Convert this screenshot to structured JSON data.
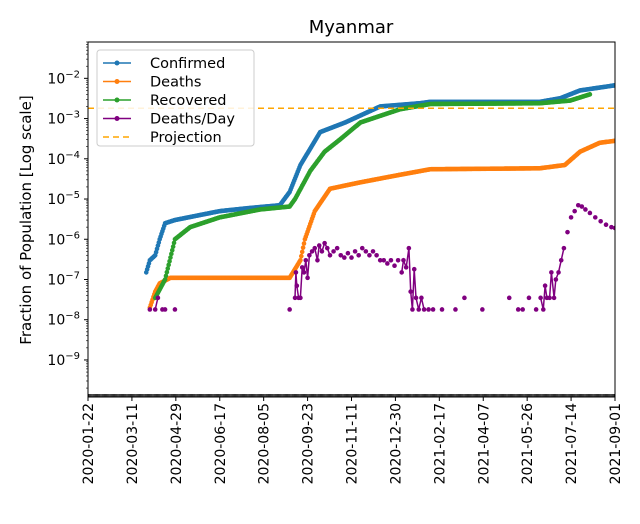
{
  "chart_data": {
    "type": "line",
    "title": "Myanmar",
    "xlabel": "",
    "ylabel": "Fraction of Population [Log scale]",
    "yscale": "log",
    "ylim": [
      1.2e-10,
      0.08
    ],
    "x_origin": "2020-01-22",
    "x_unit": "days since 2020-01-22",
    "xlim": [
      0,
      588
    ],
    "x_ticks": [
      {
        "day": 0,
        "label": "2020-01-22"
      },
      {
        "day": 49,
        "label": "2020-03-11"
      },
      {
        "day": 98,
        "label": "2020-04-29"
      },
      {
        "day": 147,
        "label": "2020-06-17"
      },
      {
        "day": 196,
        "label": "2020-08-05"
      },
      {
        "day": 245,
        "label": "2020-09-23"
      },
      {
        "day": 294,
        "label": "2020-11-11"
      },
      {
        "day": 343,
        "label": "2020-12-30"
      },
      {
        "day": 392,
        "label": "2021-02-17"
      },
      {
        "day": 441,
        "label": "2021-04-07"
      },
      {
        "day": 490,
        "label": "2021-05-26"
      },
      {
        "day": 539,
        "label": "2021-07-14"
      },
      {
        "day": 588,
        "label": "2021-09-01"
      }
    ],
    "y_ticks": [
      {
        "exp": -2,
        "base": "10",
        "sup": "−2"
      },
      {
        "exp": -3,
        "base": "10",
        "sup": "−3"
      },
      {
        "exp": -4,
        "base": "10",
        "sup": "−4"
      },
      {
        "exp": -5,
        "base": "10",
        "sup": "−5"
      },
      {
        "exp": -6,
        "base": "10",
        "sup": "−6"
      },
      {
        "exp": -7,
        "base": "10",
        "sup": "−7"
      },
      {
        "exp": -8,
        "base": "10",
        "sup": "−8"
      },
      {
        "exp": -9,
        "base": "10",
        "sup": "−9"
      }
    ],
    "legend_position": "top-left",
    "series": [
      {
        "name": "Confirmed",
        "color": "#1f77b4",
        "style": "line-dots",
        "points": [
          [
            65,
            1.5e-07
          ],
          [
            69,
            3e-07
          ],
          [
            75,
            4e-07
          ],
          [
            80,
            1e-06
          ],
          [
            86,
            2.5e-06
          ],
          [
            97,
            3e-06
          ],
          [
            125,
            4e-06
          ],
          [
            147,
            5e-06
          ],
          [
            181,
            6e-06
          ],
          [
            214,
            7e-06
          ],
          [
            225,
            1.5e-05
          ],
          [
            237,
            7e-05
          ],
          [
            259,
            0.00046
          ],
          [
            287,
            0.0008
          ],
          [
            326,
            0.002
          ],
          [
            370,
            0.0024
          ],
          [
            382,
            0.0026
          ],
          [
            504,
            0.0026
          ],
          [
            527,
            0.0032
          ],
          [
            549,
            0.005
          ],
          [
            588,
            0.0067
          ]
        ]
      },
      {
        "name": "Deaths",
        "color": "#ff7f0e",
        "style": "line-dots",
        "points": [
          [
            69,
            2e-08
          ],
          [
            75,
            5e-08
          ],
          [
            80,
            8e-08
          ],
          [
            92,
            1.1e-07
          ],
          [
            225,
            1.1e-07
          ],
          [
            237,
            3e-07
          ],
          [
            242,
            1e-06
          ],
          [
            253,
            5e-06
          ],
          [
            270,
            1.8e-05
          ],
          [
            304,
            2.6e-05
          ],
          [
            348,
            4e-05
          ],
          [
            382,
            5.5e-05
          ],
          [
            504,
            5.8e-05
          ],
          [
            532,
            7e-05
          ],
          [
            549,
            0.00015
          ],
          [
            571,
            0.00025
          ],
          [
            588,
            0.00028
          ]
        ]
      },
      {
        "name": "Recovered",
        "color": "#2ca02c",
        "style": "line-dots",
        "points": [
          [
            75,
            3.5e-08
          ],
          [
            86,
            1e-07
          ],
          [
            97,
            1e-06
          ],
          [
            114,
            2e-06
          ],
          [
            147,
            3.5e-06
          ],
          [
            192,
            5.5e-06
          ],
          [
            225,
            6.5e-06
          ],
          [
            231,
            1e-05
          ],
          [
            248,
            5e-05
          ],
          [
            264,
            0.00015
          ],
          [
            281,
            0.0003
          ],
          [
            304,
            0.0008
          ],
          [
            348,
            0.0017
          ],
          [
            382,
            0.0023
          ],
          [
            504,
            0.0024
          ],
          [
            538,
            0.0028
          ],
          [
            560,
            0.004
          ]
        ]
      },
      {
        "name": "Deaths/Day",
        "color": "#800080",
        "style": "scatter-connected",
        "points": [
          [
            69,
            1.8e-08
          ],
          [
            75,
            1.8e-08
          ],
          [
            78,
            3.5e-08
          ],
          [
            83,
            1.8e-08
          ],
          [
            86,
            1.8e-08
          ],
          [
            97,
            1.8e-08
          ],
          [
            225,
            1.8e-08
          ],
          [
            231,
            3.5e-08
          ],
          [
            232,
            1.5e-07
          ],
          [
            233,
            7e-08
          ],
          [
            235,
            3.5e-08
          ],
          [
            237,
            3.5e-08
          ],
          [
            239,
            2e-07
          ],
          [
            241,
            1.5e-07
          ],
          [
            243,
            3e-07
          ],
          [
            245,
            1.1e-07
          ],
          [
            247,
            4e-07
          ],
          [
            250,
            5e-07
          ],
          [
            253,
            6e-07
          ],
          [
            256,
            3e-07
          ],
          [
            258,
            7e-07
          ],
          [
            261,
            5e-07
          ],
          [
            264,
            8e-07
          ],
          [
            267,
            6e-07
          ],
          [
            270,
            4e-07
          ],
          [
            274,
            5e-07
          ],
          [
            278,
            6e-07
          ],
          [
            282,
            4e-07
          ],
          [
            286,
            3.5e-07
          ],
          [
            290,
            4.5e-07
          ],
          [
            294,
            3.5e-07
          ],
          [
            298,
            5e-07
          ],
          [
            302,
            4e-07
          ],
          [
            306,
            6e-07
          ],
          [
            310,
            5e-07
          ],
          [
            314,
            4e-07
          ],
          [
            318,
            5e-07
          ],
          [
            322,
            4e-07
          ],
          [
            326,
            3e-07
          ],
          [
            330,
            3e-07
          ],
          [
            334,
            2.5e-07
          ],
          [
            338,
            3e-07
          ],
          [
            342,
            2.2e-07
          ],
          [
            346,
            3e-07
          ],
          [
            350,
            1.5e-07
          ],
          [
            352,
            3e-07
          ],
          [
            355,
            2e-07
          ],
          [
            358,
            6e-07
          ],
          [
            360,
            5e-08
          ],
          [
            362,
            1.8e-08
          ],
          [
            364,
            1.8e-07
          ],
          [
            366,
            3.5e-08
          ],
          [
            369,
            1.8e-08
          ],
          [
            372,
            3.5e-08
          ],
          [
            375,
            1.8e-08
          ],
          [
            380,
            1.8e-08
          ],
          [
            385,
            1.8e-08
          ],
          [
            395,
            1.8e-08
          ],
          [
            410,
            1.8e-08
          ],
          [
            420,
            3.5e-08
          ],
          [
            440,
            1.8e-08
          ],
          [
            470,
            3.5e-08
          ],
          [
            480,
            1.8e-08
          ],
          [
            485,
            1.8e-08
          ],
          [
            492,
            3.5e-08
          ],
          [
            500,
            1.8e-08
          ],
          [
            505,
            3.5e-08
          ],
          [
            508,
            1.8e-08
          ],
          [
            510,
            7e-08
          ],
          [
            512,
            3.5e-08
          ],
          [
            515,
            3.5e-08
          ],
          [
            517,
            1.5e-07
          ],
          [
            520,
            3.5e-08
          ],
          [
            522,
            1e-07
          ],
          [
            525,
            1.5e-07
          ],
          [
            528,
            3e-07
          ],
          [
            531,
            6e-07
          ],
          [
            535,
            1.5e-06
          ],
          [
            539,
            3.5e-06
          ],
          [
            543,
            5e-06
          ],
          [
            547,
            7e-06
          ],
          [
            551,
            6.5e-06
          ],
          [
            555,
            5.5e-06
          ],
          [
            560,
            4.5e-06
          ],
          [
            566,
            3.5e-06
          ],
          [
            572,
            2.8e-06
          ],
          [
            578,
            2.3e-06
          ],
          [
            584,
            2e-06
          ],
          [
            588,
            1.9e-06
          ]
        ]
      },
      {
        "name": "Projection",
        "color": "#ffa500",
        "style": "dashed-hline",
        "value": 0.0018
      }
    ]
  }
}
